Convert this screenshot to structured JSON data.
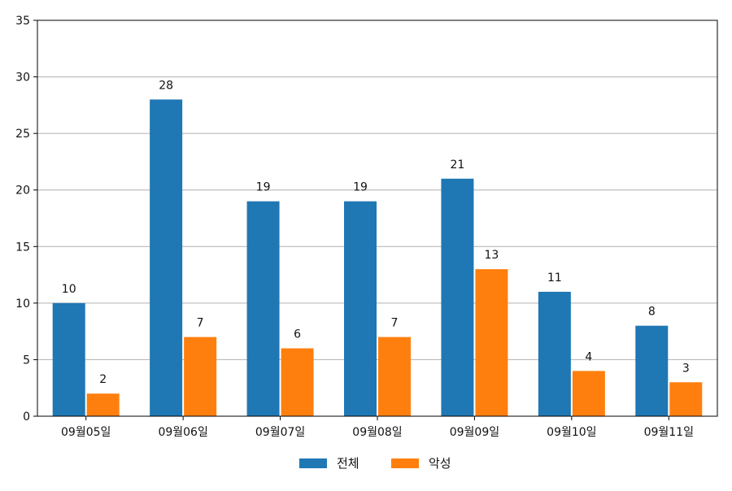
{
  "chart_data": {
    "type": "bar",
    "categories": [
      "09월05일",
      "09월06일",
      "09월07일",
      "09월08일",
      "09월09일",
      "09월10일",
      "09월11일"
    ],
    "series": [
      {
        "name": "전체",
        "values": [
          10,
          28,
          19,
          19,
          21,
          11,
          8
        ],
        "color": "#1f77b4"
      },
      {
        "name": "악성",
        "values": [
          2,
          7,
          6,
          7,
          13,
          4,
          3
        ],
        "color": "#ff7f0e"
      }
    ],
    "ylim": [
      0,
      35
    ],
    "yticks": [
      0,
      5,
      10,
      15,
      20,
      25,
      30,
      35
    ],
    "grid": "horizontal",
    "legend": "bottom-center",
    "data_labels": true
  }
}
